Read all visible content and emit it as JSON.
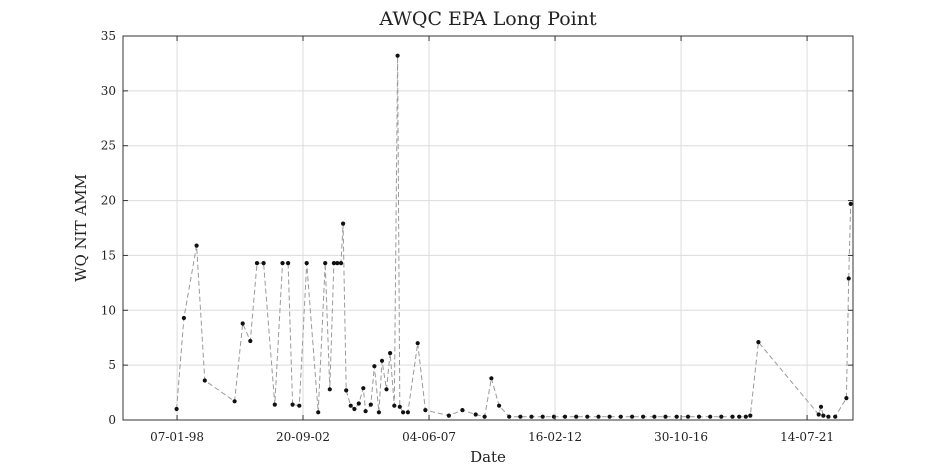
{
  "chart_data": {
    "type": "line",
    "title": "AWQC EPA Long Point",
    "xlabel": "Date",
    "ylabel": "WQ NIT AMM",
    "ylim": [
      0,
      35
    ],
    "yticks": [
      0,
      5,
      10,
      15,
      20,
      25,
      30,
      35
    ],
    "xlim": [
      "1996-01-01",
      "2023-04-01"
    ],
    "xticks": [
      {
        "date": "1998-01-07",
        "label": "07-01-98"
      },
      {
        "date": "2002-09-20",
        "label": "20-09-02"
      },
      {
        "date": "2007-06-04",
        "label": "04-06-07"
      },
      {
        "date": "2012-02-16",
        "label": "16-02-12"
      },
      {
        "date": "2016-10-30",
        "label": "30-10-16"
      },
      {
        "date": "2021-07-14",
        "label": "14-07-21"
      }
    ],
    "grid": true,
    "series": [
      {
        "color": "#111111",
        "line_color": "#9a9a9a",
        "points": [
          [
            "1998-01-01",
            1.0
          ],
          [
            "1998-04-10",
            9.3
          ],
          [
            "1998-10-01",
            15.9
          ],
          [
            "1999-01-20",
            3.6
          ],
          [
            "2000-03-01",
            1.7
          ],
          [
            "2000-06-20",
            8.8
          ],
          [
            "2000-10-01",
            7.2
          ],
          [
            "2001-01-01",
            14.3
          ],
          [
            "2001-04-01",
            14.3
          ],
          [
            "2001-09-01",
            1.4
          ],
          [
            "2001-12-15",
            14.3
          ],
          [
            "2002-03-01",
            14.3
          ],
          [
            "2002-05-01",
            1.4
          ],
          [
            "2002-08-01",
            1.3
          ],
          [
            "2002-11-10",
            14.3
          ],
          [
            "2003-04-15",
            0.7
          ],
          [
            "2003-07-20",
            14.3
          ],
          [
            "2003-09-20",
            2.8
          ],
          [
            "2003-11-15",
            14.3
          ],
          [
            "2004-01-01",
            14.3
          ],
          [
            "2004-02-20",
            14.3
          ],
          [
            "2004-03-20",
            17.9
          ],
          [
            "2004-05-01",
            2.7
          ],
          [
            "2004-07-01",
            1.3
          ],
          [
            "2004-08-20",
            1.0
          ],
          [
            "2004-10-20",
            1.5
          ],
          [
            "2004-12-20",
            2.9
          ],
          [
            "2005-01-20",
            0.8
          ],
          [
            "2005-04-01",
            1.4
          ],
          [
            "2005-05-20",
            4.9
          ],
          [
            "2005-07-20",
            0.7
          ],
          [
            "2005-09-01",
            5.4
          ],
          [
            "2005-11-01",
            2.8
          ],
          [
            "2005-12-20",
            6.1
          ],
          [
            "2006-02-15",
            1.3
          ],
          [
            "2006-04-01",
            33.2
          ],
          [
            "2006-05-01",
            1.2
          ],
          [
            "2006-06-15",
            0.7
          ],
          [
            "2006-08-20",
            0.7
          ],
          [
            "2007-01-01",
            7.0
          ],
          [
            "2007-04-15",
            0.9
          ],
          [
            "2008-03-01",
            0.4
          ],
          [
            "2008-09-01",
            0.9
          ],
          [
            "2009-03-01",
            0.5
          ],
          [
            "2009-07-01",
            0.3
          ],
          [
            "2009-10-01",
            3.8
          ],
          [
            "2010-01-15",
            1.3
          ],
          [
            "2010-06-01",
            0.3
          ],
          [
            "2010-11-01",
            0.3
          ],
          [
            "2011-04-01",
            0.3
          ],
          [
            "2011-09-01",
            0.3
          ],
          [
            "2012-02-01",
            0.3
          ],
          [
            "2012-07-01",
            0.3
          ],
          [
            "2012-12-01",
            0.3
          ],
          [
            "2013-05-01",
            0.3
          ],
          [
            "2013-10-01",
            0.3
          ],
          [
            "2014-03-01",
            0.3
          ],
          [
            "2014-08-01",
            0.3
          ],
          [
            "2015-01-01",
            0.3
          ],
          [
            "2015-06-01",
            0.3
          ],
          [
            "2015-11-01",
            0.3
          ],
          [
            "2016-04-01",
            0.3
          ],
          [
            "2016-09-01",
            0.3
          ],
          [
            "2017-02-01",
            0.3
          ],
          [
            "2017-07-01",
            0.3
          ],
          [
            "2017-12-01",
            0.3
          ],
          [
            "2018-05-01",
            0.3
          ],
          [
            "2018-10-01",
            0.3
          ],
          [
            "2019-01-01",
            0.3
          ],
          [
            "2019-04-01",
            0.3
          ],
          [
            "2019-06-01",
            0.4
          ],
          [
            "2019-09-20",
            7.1
          ],
          [
            "2021-12-20",
            0.5
          ],
          [
            "2022-01-20",
            1.2
          ],
          [
            "2022-02-20",
            0.4
          ],
          [
            "2022-05-01",
            0.3
          ],
          [
            "2022-08-01",
            0.3
          ],
          [
            "2023-01-01",
            2.0
          ],
          [
            "2023-02-01",
            12.9
          ],
          [
            "2023-03-01",
            19.7
          ]
        ]
      }
    ]
  }
}
